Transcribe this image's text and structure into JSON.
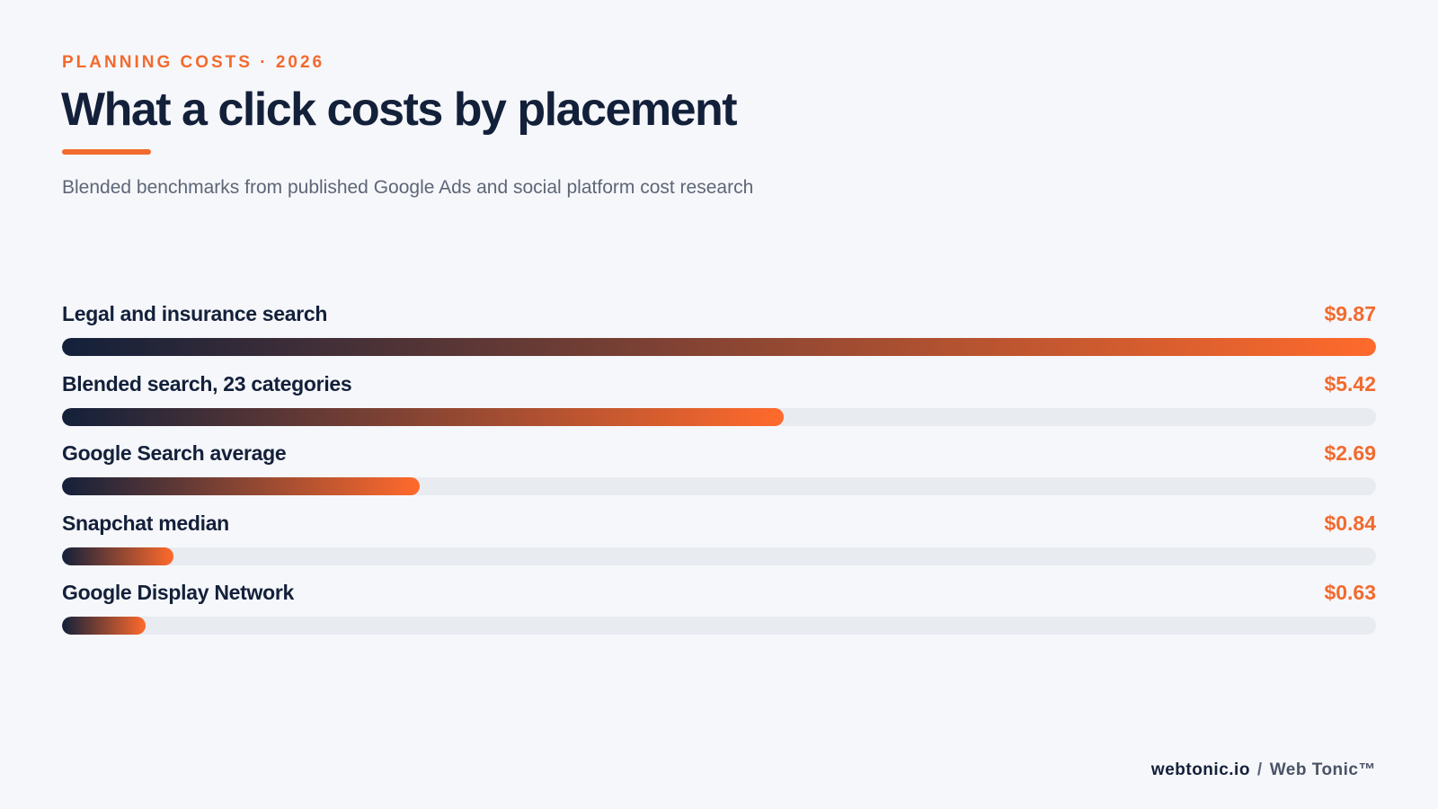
{
  "header": {
    "eyebrow": "PLANNING COSTS · 2026",
    "title": "What a click costs by placement",
    "subtitle": "Blended benchmarks from published Google Ads and social platform cost research"
  },
  "colors": {
    "accent": "#f26a2e",
    "navy": "#13203a",
    "track": "#e8ebf0"
  },
  "chart_data": {
    "type": "bar",
    "orientation": "horizontal",
    "categories": [
      "Legal and insurance search",
      "Blended search, 23 categories",
      "Google Search average",
      "Snapchat median",
      "Google Display Network"
    ],
    "values": [
      9.87,
      5.42,
      2.69,
      0.84,
      0.63
    ],
    "value_labels": [
      "$9.87",
      "$5.42",
      "$2.69",
      "$0.84",
      "$0.63"
    ],
    "xlim": [
      0,
      9.87
    ],
    "grid": false
  },
  "footer": {
    "site": "webtonic.io",
    "separator": "/",
    "brand": "Web Tonic™"
  }
}
